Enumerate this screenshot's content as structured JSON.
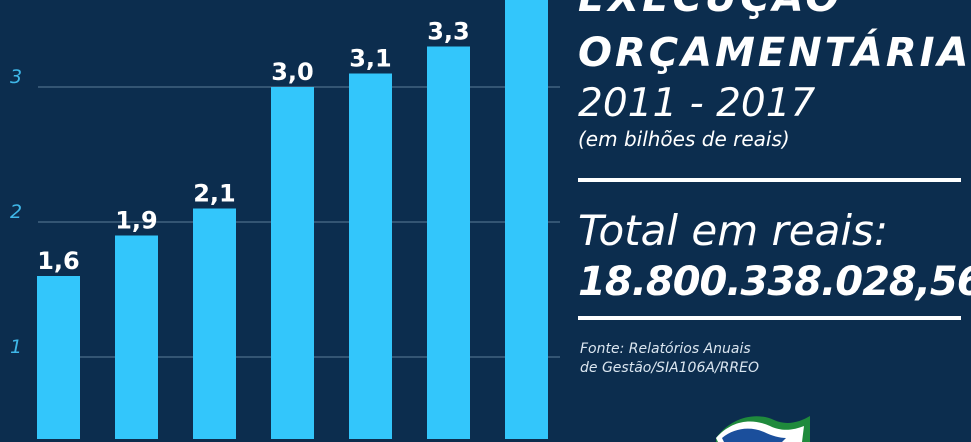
{
  "chart_data": {
    "type": "bar",
    "values": [
      1.6,
      1.9,
      2.1,
      3.0,
      3.1,
      3.3,
      4.0
    ],
    "data_labels": [
      "1,6",
      "1,9",
      "2,1",
      "3,0",
      "3,1",
      "3,3",
      ""
    ],
    "y_ticks": [
      1,
      2,
      3
    ],
    "ylim": [
      0.5,
      3.65
    ],
    "grid": true,
    "colors": {
      "bar": "#33c6fb",
      "grid": "#5d7d98",
      "tick": "#3fb7e8",
      "background": "#0c2d4e"
    }
  },
  "panel": {
    "title_line1": "EXECUÇÃO",
    "title_line2": "ORÇAMENTÁRIA",
    "period": "2011 - 2017",
    "unit": "(em bilhões de reais)",
    "total_label": "Total em reais:",
    "total_value": "18.800.338.028,56",
    "source_line1": "Fonte: Relatórios Anuais",
    "source_line2": "de Gestão/SIA106A/RREO"
  }
}
